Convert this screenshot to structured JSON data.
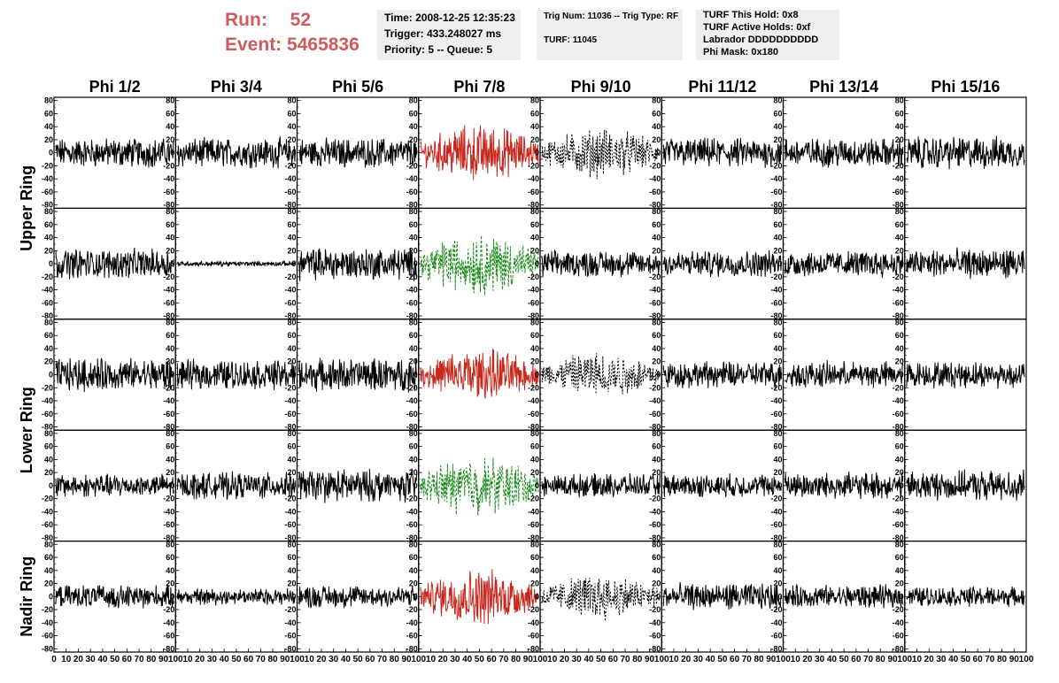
{
  "header": {
    "run_label": "Run:",
    "run_value": "52",
    "event_label": "Event:",
    "event_value": "5465836",
    "box1": [
      "Time: 2008-12-25 12:35:23",
      "Trigger: 433.248027 ms",
      "Priority: 5 -- Queue: 5"
    ],
    "box2": [
      "Trig Num: 11036 -- Trig Type: RF",
      "TURF: 11045"
    ],
    "box3": [
      "TURF This Hold: 0x8",
      "TURF Active Holds: 0xf",
      "Labrador DDDDDDDDDD",
      "Phi Mask: 0x180"
    ]
  },
  "colors": {
    "header_red": "#cd5c5c",
    "box_bg": "#efefef",
    "trace_black": "#000000",
    "trace_red": "#c8281e",
    "trace_green": "#1e8c1e"
  },
  "chart_data": {
    "type": "line",
    "columns": [
      "Phi 1/2",
      "Phi 3/4",
      "Phi 5/6",
      "Phi 7/8",
      "Phi 9/10",
      "Phi 11/12",
      "Phi 13/14",
      "Phi 15/16"
    ],
    "ring_labels": [
      {
        "text": "Upper Ring",
        "rows": [
          0,
          1
        ]
      },
      {
        "text": "Lower Ring",
        "rows": [
          2,
          3
        ]
      },
      {
        "text": "Nadir Ring",
        "rows": [
          4
        ]
      }
    ],
    "xlim": [
      0,
      100
    ],
    "ylim": [
      -85,
      85
    ],
    "x_tick_labels": [
      "0",
      "10",
      "20",
      "30",
      "40",
      "50",
      "60",
      "70",
      "80",
      "90",
      "100"
    ],
    "y_tick_labels": [
      "-80",
      "-60",
      "-40",
      "-20",
      "0",
      "20",
      "40",
      "60",
      "80"
    ],
    "panels": [
      [
        {
          "style": "black",
          "amp": 18
        },
        {
          "style": "black",
          "amp": 18
        },
        {
          "style": "black",
          "amp": 18
        },
        {
          "style": "red",
          "amp": 35
        },
        {
          "style": "dotted",
          "amp": 30
        },
        {
          "style": "black",
          "amp": 18
        },
        {
          "style": "black",
          "amp": 18
        },
        {
          "style": "black",
          "amp": 20
        }
      ],
      [
        {
          "style": "black",
          "amp": 18
        },
        {
          "style": "flat",
          "amp": 3
        },
        {
          "style": "black",
          "amp": 20
        },
        {
          "style": "green",
          "amp": 38
        },
        {
          "style": "black",
          "amp": 16
        },
        {
          "style": "black",
          "amp": 16
        },
        {
          "style": "black",
          "amp": 16
        },
        {
          "style": "black",
          "amp": 18
        }
      ],
      [
        {
          "style": "black",
          "amp": 20
        },
        {
          "style": "black",
          "amp": 18
        },
        {
          "style": "black",
          "amp": 20
        },
        {
          "style": "red",
          "amp": 32
        },
        {
          "style": "dotted",
          "amp": 28
        },
        {
          "style": "black",
          "amp": 16
        },
        {
          "style": "black",
          "amp": 16
        },
        {
          "style": "black",
          "amp": 16
        }
      ],
      [
        {
          "style": "black",
          "amp": 14
        },
        {
          "style": "black",
          "amp": 16
        },
        {
          "style": "black",
          "amp": 20
        },
        {
          "style": "green",
          "amp": 36
        },
        {
          "style": "black",
          "amp": 14
        },
        {
          "style": "black",
          "amp": 14
        },
        {
          "style": "black",
          "amp": 16
        },
        {
          "style": "black",
          "amp": 18
        }
      ],
      [
        {
          "style": "black",
          "amp": 14
        },
        {
          "style": "black",
          "amp": 10
        },
        {
          "style": "black",
          "amp": 14
        },
        {
          "style": "red",
          "amp": 34
        },
        {
          "style": "dotted",
          "amp": 28
        },
        {
          "style": "black",
          "amp": 16
        },
        {
          "style": "black",
          "amp": 14
        },
        {
          "style": "black",
          "amp": 12
        }
      ]
    ]
  }
}
